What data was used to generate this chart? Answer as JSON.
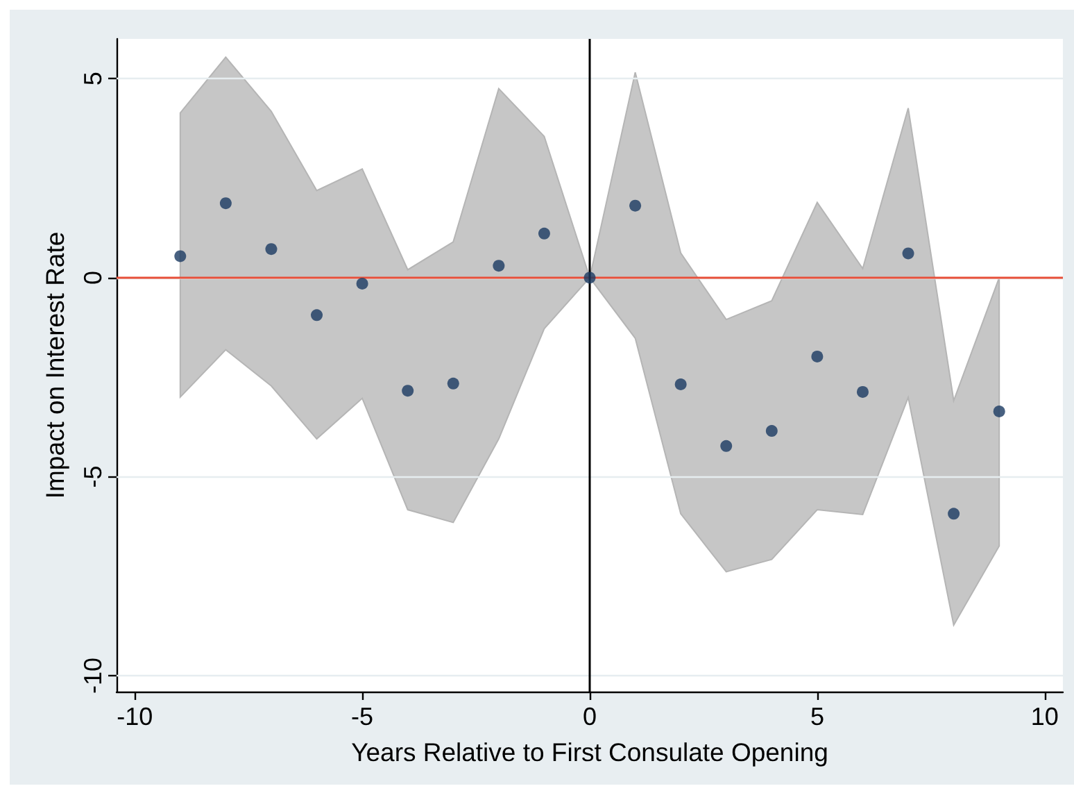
{
  "chart_data": {
    "type": "scatter",
    "xlabel": "Years Relative to First Consulate Opening",
    "ylabel": "Impact on Interest Rate",
    "x": [
      -9,
      -8,
      -7,
      -6,
      -5,
      -4,
      -3,
      -2,
      -1,
      0,
      1,
      2,
      3,
      4,
      5,
      6,
      7,
      8,
      9
    ],
    "series": [
      {
        "color": "#1a3a62",
        "values": [
          0.54,
          1.87,
          0.72,
          -0.94,
          -0.15,
          -2.84,
          -2.66,
          0.3,
          1.11,
          0,
          1.81,
          -2.68,
          -4.23,
          -3.85,
          -1.98,
          -2.87,
          0.61,
          -5.93,
          -3.36
        ],
        "lower": [
          -3.0,
          -1.81,
          -2.72,
          -4.05,
          -3.03,
          -5.83,
          -6.15,
          -4.05,
          -1.28,
          0,
          -1.52,
          -5.93,
          -7.39,
          -7.08,
          -5.83,
          -5.95,
          -3.01,
          -8.73,
          -6.74
        ],
        "upper": [
          4.14,
          5.54,
          4.18,
          2.19,
          2.73,
          0.2,
          0.9,
          4.75,
          3.55,
          0,
          5.16,
          0.62,
          -1.05,
          -0.58,
          1.89,
          0.23,
          4.26,
          -3.09,
          0
        ]
      }
    ],
    "xlim": [
      -10.4,
      10.4
    ],
    "ylim": [
      -10.4,
      6
    ],
    "xticks": [
      -10,
      -5,
      0,
      5,
      10
    ],
    "yticks": [
      -10,
      -5,
      0,
      5
    ],
    "grid": "y",
    "marker": "circle",
    "ref_lines": [
      {
        "axis": "y",
        "value": 0,
        "color": "#e8503a"
      },
      {
        "axis": "x",
        "value": 0,
        "color": "#000000"
      }
    ]
  }
}
